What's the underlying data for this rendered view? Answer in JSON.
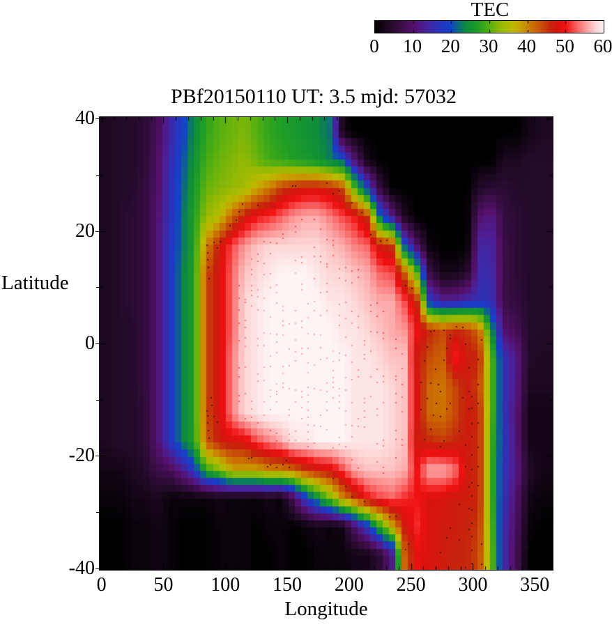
{
  "figure": {
    "title": "PBf20150110  UT: 3.5  mjd: 57032",
    "colorbar": {
      "title": "TEC",
      "min": 0,
      "max": 60,
      "tick_values": [
        0,
        10,
        20,
        30,
        40,
        50,
        60
      ]
    },
    "x_axis": {
      "label": "Longitude",
      "major_ticks": [
        0,
        50,
        100,
        150,
        200,
        250,
        300,
        350
      ],
      "minor_step": 10,
      "range": [
        0,
        360
      ]
    },
    "y_axis": {
      "label": "Latitude",
      "major_ticks": [
        40,
        20,
        0,
        -20,
        -40
      ],
      "minor_ticks": [
        30,
        10,
        -10,
        -30
      ],
      "range": [
        -40,
        40
      ]
    }
  },
  "chart_data": {
    "type": "heatmap",
    "title": "PBf20150110  UT: 3.5  mjd: 57032",
    "xlabel": "Longitude",
    "ylabel": "Latitude",
    "colorbar_label": "TEC",
    "colorbar_range": [
      0,
      60
    ],
    "xlim": [
      0,
      360
    ],
    "ylim": [
      -40,
      40
    ],
    "lon_bins": {
      "start": 0,
      "step": 10,
      "count": 36
    },
    "lat_bins": {
      "start_top": 40,
      "step": -5,
      "count": 16
    },
    "grid_rows_top_to_bottom": [
      [
        3,
        4,
        4,
        5,
        8,
        14,
        19,
        24,
        28,
        30,
        31,
        32,
        30,
        28,
        27,
        26,
        25,
        24,
        22,
        2,
        0,
        0,
        0,
        0,
        0,
        0,
        0,
        0,
        0,
        0,
        0,
        0,
        0,
        0,
        2,
        3
      ],
      [
        3,
        4,
        4,
        5,
        9,
        15,
        20,
        25,
        29,
        31,
        32,
        33,
        31,
        29,
        28,
        27,
        26,
        25,
        23,
        21,
        10,
        2,
        0,
        0,
        0,
        0,
        0,
        0,
        0,
        0,
        0,
        0,
        3,
        3,
        4,
        4
      ],
      [
        3,
        4,
        4,
        6,
        9,
        16,
        21,
        26,
        31,
        32,
        33,
        34,
        38,
        41,
        45,
        47,
        48,
        48,
        47,
        44,
        30,
        19,
        6,
        0,
        0,
        0,
        0,
        0,
        0,
        0,
        4,
        5,
        5,
        4,
        4,
        4
      ],
      [
        3,
        4,
        5,
        6,
        10,
        16,
        22,
        27,
        33,
        36,
        42,
        47,
        50,
        51,
        53,
        55,
        56,
        56,
        54,
        52,
        50,
        45,
        22,
        12,
        3,
        0,
        0,
        0,
        0,
        0,
        10,
        12,
        6,
        5,
        4,
        4
      ],
      [
        3,
        4,
        5,
        6,
        10,
        17,
        22,
        27,
        40,
        47,
        52,
        55,
        57,
        58,
        58,
        58,
        58,
        58,
        57,
        56,
        54,
        53,
        47,
        45,
        20,
        9,
        1,
        0,
        0,
        0,
        14,
        14,
        7,
        5,
        4,
        4
      ],
      [
        3,
        4,
        5,
        6,
        10,
        17,
        23,
        27,
        44,
        48,
        53,
        57,
        58,
        59,
        60,
        60,
        60,
        59,
        58,
        58,
        57,
        56,
        53,
        52,
        43,
        30,
        7,
        2,
        2,
        4,
        15,
        15,
        7,
        5,
        4,
        4
      ],
      [
        3,
        4,
        5,
        6,
        10,
        17,
        23,
        27,
        44,
        48,
        53,
        58,
        59,
        60,
        60,
        60,
        60,
        60,
        59,
        59,
        58,
        57,
        56,
        56,
        52,
        46,
        18,
        13,
        13,
        15,
        16,
        16,
        7,
        6,
        4,
        4
      ],
      [
        3,
        4,
        4,
        6,
        10,
        17,
        23,
        27,
        44,
        48,
        53,
        58,
        59,
        60,
        60,
        60,
        60,
        60,
        60,
        59,
        59,
        58,
        57,
        56,
        55,
        50,
        46,
        44,
        46,
        45,
        42,
        24,
        10,
        8,
        4,
        4
      ],
      [
        3,
        4,
        4,
        6,
        10,
        17,
        23,
        27,
        44,
        48,
        54,
        58,
        59,
        60,
        60,
        60,
        60,
        60,
        60,
        60,
        59,
        59,
        58,
        57,
        57,
        47,
        44,
        42,
        51,
        47,
        46,
        30,
        16,
        12,
        4,
        3
      ],
      [
        3,
        4,
        4,
        6,
        10,
        17,
        23,
        27,
        44,
        48,
        54,
        58,
        59,
        60,
        60,
        60,
        60,
        60,
        60,
        60,
        59,
        59,
        59,
        58,
        57,
        48,
        42,
        41,
        44,
        47,
        44,
        30,
        16,
        12,
        3,
        3
      ],
      [
        3,
        4,
        4,
        5,
        10,
        17,
        23,
        27,
        44,
        48,
        54,
        58,
        59,
        60,
        60,
        60,
        60,
        60,
        60,
        60,
        59,
        59,
        59,
        58,
        57,
        48,
        42,
        41,
        44,
        47,
        46,
        30,
        16,
        11,
        2,
        2
      ],
      [
        3,
        4,
        4,
        5,
        10,
        17,
        23,
        27,
        43,
        47,
        48,
        48,
        52,
        54,
        56,
        59,
        59,
        60,
        60,
        60,
        59,
        59,
        59,
        58,
        57,
        47,
        46,
        45,
        46,
        47,
        46,
        29,
        17,
        11,
        2,
        2
      ],
      [
        2,
        2,
        3,
        4,
        7,
        8,
        12,
        18,
        28,
        32,
        38,
        38,
        38,
        40,
        40,
        42,
        45,
        47,
        48,
        52,
        56,
        57,
        57,
        57,
        56,
        50,
        56,
        56,
        54,
        47,
        46,
        29,
        16,
        12,
        4,
        2
      ],
      [
        1,
        1,
        2,
        2,
        3,
        1,
        1,
        1,
        1,
        2,
        1,
        1,
        1,
        2,
        1,
        8,
        18,
        25,
        32,
        40,
        45,
        50,
        52,
        53,
        51,
        50,
        48,
        48,
        47,
        47,
        46,
        29,
        16,
        10,
        2,
        1
      ],
      [
        0,
        0,
        1,
        1,
        2,
        1,
        0,
        0,
        0,
        1,
        1,
        1,
        0,
        1,
        1,
        0,
        1,
        2,
        1,
        2,
        10,
        18,
        28,
        38,
        47,
        51,
        48,
        47,
        47,
        46,
        45,
        30,
        15,
        9,
        1,
        0
      ],
      [
        0,
        0,
        1,
        1,
        2,
        1,
        0,
        0,
        0,
        1,
        1,
        1,
        0,
        0,
        1,
        0,
        0,
        1,
        1,
        1,
        2,
        2,
        5,
        12,
        42,
        49,
        48,
        47,
        46,
        46,
        44,
        31,
        15,
        8,
        0,
        0
      ]
    ],
    "palette_stops": [
      [
        0,
        "#000000"
      ],
      [
        3,
        "#1c0820"
      ],
      [
        6,
        "#330d3e"
      ],
      [
        10,
        "#54106a"
      ],
      [
        13,
        "#4d1f96"
      ],
      [
        16,
        "#3030b4"
      ],
      [
        18,
        "#2138c4"
      ],
      [
        20,
        "#1243c8"
      ],
      [
        22,
        "#0c6e78"
      ],
      [
        24,
        "#0d8c3c"
      ],
      [
        27,
        "#1f9e26"
      ],
      [
        30,
        "#55b010"
      ],
      [
        33,
        "#96b904"
      ],
      [
        36,
        "#babb00"
      ],
      [
        38,
        "#c6a300"
      ],
      [
        40,
        "#cb8500"
      ],
      [
        42,
        "#cb6604"
      ],
      [
        44,
        "#c74a08"
      ],
      [
        46,
        "#c5250c"
      ],
      [
        48,
        "#d81410"
      ],
      [
        50,
        "#f01111"
      ],
      [
        52,
        "#f64949"
      ],
      [
        54,
        "#fa7d7d"
      ],
      [
        56,
        "#fcabab"
      ],
      [
        58,
        "#fdd6d6"
      ],
      [
        60,
        "#fef4f4"
      ]
    ]
  }
}
